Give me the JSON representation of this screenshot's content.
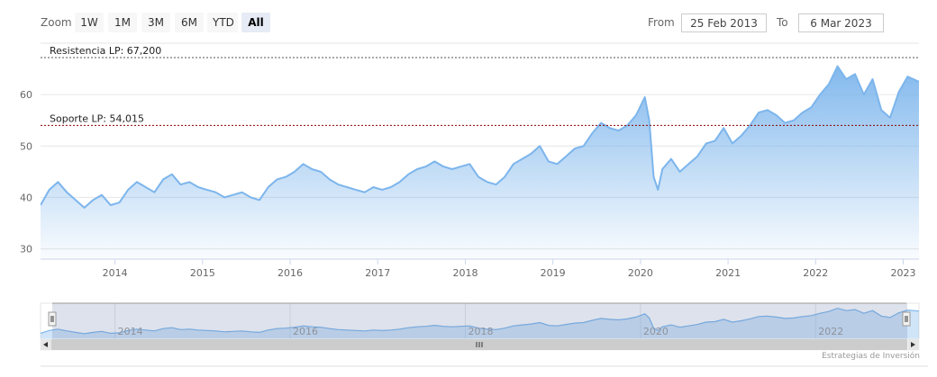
{
  "toolbar": {
    "zoom_label": "Zoom",
    "zoom_buttons": [
      "1W",
      "1M",
      "3M",
      "6M",
      "YTD",
      "All"
    ],
    "active_zoom": "All",
    "from_label": "From",
    "from_value": "25 Feb 2013",
    "to_label": "To",
    "to_value": "6 Mar 2023"
  },
  "credit": "Estrategias de Inversión",
  "colors": {
    "series_line": "#7cb5ec",
    "resistance_line": "#555555",
    "support_line": "#8b0000"
  },
  "chart_data": {
    "type": "area",
    "title": "",
    "xlabel": "",
    "ylabel": "",
    "xlim": [
      2013.15,
      2023.18
    ],
    "ylim": [
      28,
      70
    ],
    "y_ticks": [
      "30",
      "40",
      "50",
      "60"
    ],
    "x_ticks": [
      "2014",
      "2015",
      "2016",
      "2017",
      "2018",
      "2019",
      "2020",
      "2021",
      "2022",
      "2023"
    ],
    "grid": true,
    "legend": "none",
    "navigator_ticks": [
      "2014",
      "2016",
      "2018",
      "2020",
      "2022"
    ],
    "plot_lines": [
      {
        "label": "Resistencia LP: 67,200",
        "value": 67.2
      },
      {
        "label": "Soporte LP: 54,015",
        "value": 54.015
      }
    ],
    "series": [
      {
        "x": [
          2013.15,
          2013.25,
          2013.35,
          2013.45,
          2013.55,
          2013.65,
          2013.75,
          2013.85,
          2013.95,
          2014.05,
          2014.15,
          2014.25,
          2014.35,
          2014.45,
          2014.55,
          2014.65,
          2014.75,
          2014.85,
          2014.95,
          2015.05,
          2015.15,
          2015.25,
          2015.35,
          2015.45,
          2015.55,
          2015.65,
          2015.75,
          2015.85,
          2015.95,
          2016.05,
          2016.15,
          2016.25,
          2016.35,
          2016.45,
          2016.55,
          2016.65,
          2016.75,
          2016.85,
          2016.95,
          2017.05,
          2017.15,
          2017.25,
          2017.35,
          2017.45,
          2017.55,
          2017.65,
          2017.75,
          2017.85,
          2017.95,
          2018.05,
          2018.15,
          2018.25,
          2018.35,
          2018.45,
          2018.55,
          2018.65,
          2018.75,
          2018.85,
          2018.95,
          2019.05,
          2019.15,
          2019.25,
          2019.35,
          2019.45,
          2019.55,
          2019.65,
          2019.75,
          2019.85,
          2019.95,
          2020.05,
          2020.1,
          2020.15,
          2020.2,
          2020.25,
          2020.35,
          2020.45,
          2020.55,
          2020.65,
          2020.75,
          2020.85,
          2020.95,
          2021.05,
          2021.15,
          2021.25,
          2021.35,
          2021.45,
          2021.55,
          2021.65,
          2021.75,
          2021.85,
          2021.95,
          2022.05,
          2022.15,
          2022.25,
          2022.35,
          2022.45,
          2022.55,
          2022.65,
          2022.75,
          2022.85,
          2022.95,
          2023.05,
          2023.18
        ],
        "values": [
          38.5,
          41.5,
          43.0,
          41.0,
          39.5,
          38.0,
          39.5,
          40.5,
          38.5,
          39.0,
          41.5,
          43.0,
          42.0,
          41.0,
          43.5,
          44.5,
          42.5,
          43.0,
          42.0,
          41.5,
          41.0,
          40.0,
          40.5,
          41.0,
          40.0,
          39.5,
          42.0,
          43.5,
          44.0,
          45.0,
          46.5,
          45.5,
          45.0,
          43.5,
          42.5,
          42.0,
          41.5,
          41.0,
          42.0,
          41.5,
          42.0,
          43.0,
          44.5,
          45.5,
          46.0,
          47.0,
          46.0,
          45.5,
          46.0,
          46.5,
          44.0,
          43.0,
          42.5,
          44.0,
          46.5,
          47.5,
          48.5,
          50.0,
          47.0,
          46.5,
          48.0,
          49.5,
          50.0,
          52.5,
          54.5,
          53.5,
          53.0,
          54.0,
          56.0,
          59.5,
          55.0,
          44.0,
          41.5,
          45.5,
          47.5,
          45.0,
          46.5,
          48.0,
          50.5,
          51.0,
          53.5,
          50.5,
          52.0,
          54.0,
          56.5,
          57.0,
          56.0,
          54.5,
          55.0,
          56.5,
          57.5,
          60.0,
          62.0,
          65.5,
          63.0,
          64.0,
          60.0,
          63.0,
          57.0,
          55.5,
          60.5,
          63.5,
          62.5
        ]
      }
    ]
  }
}
